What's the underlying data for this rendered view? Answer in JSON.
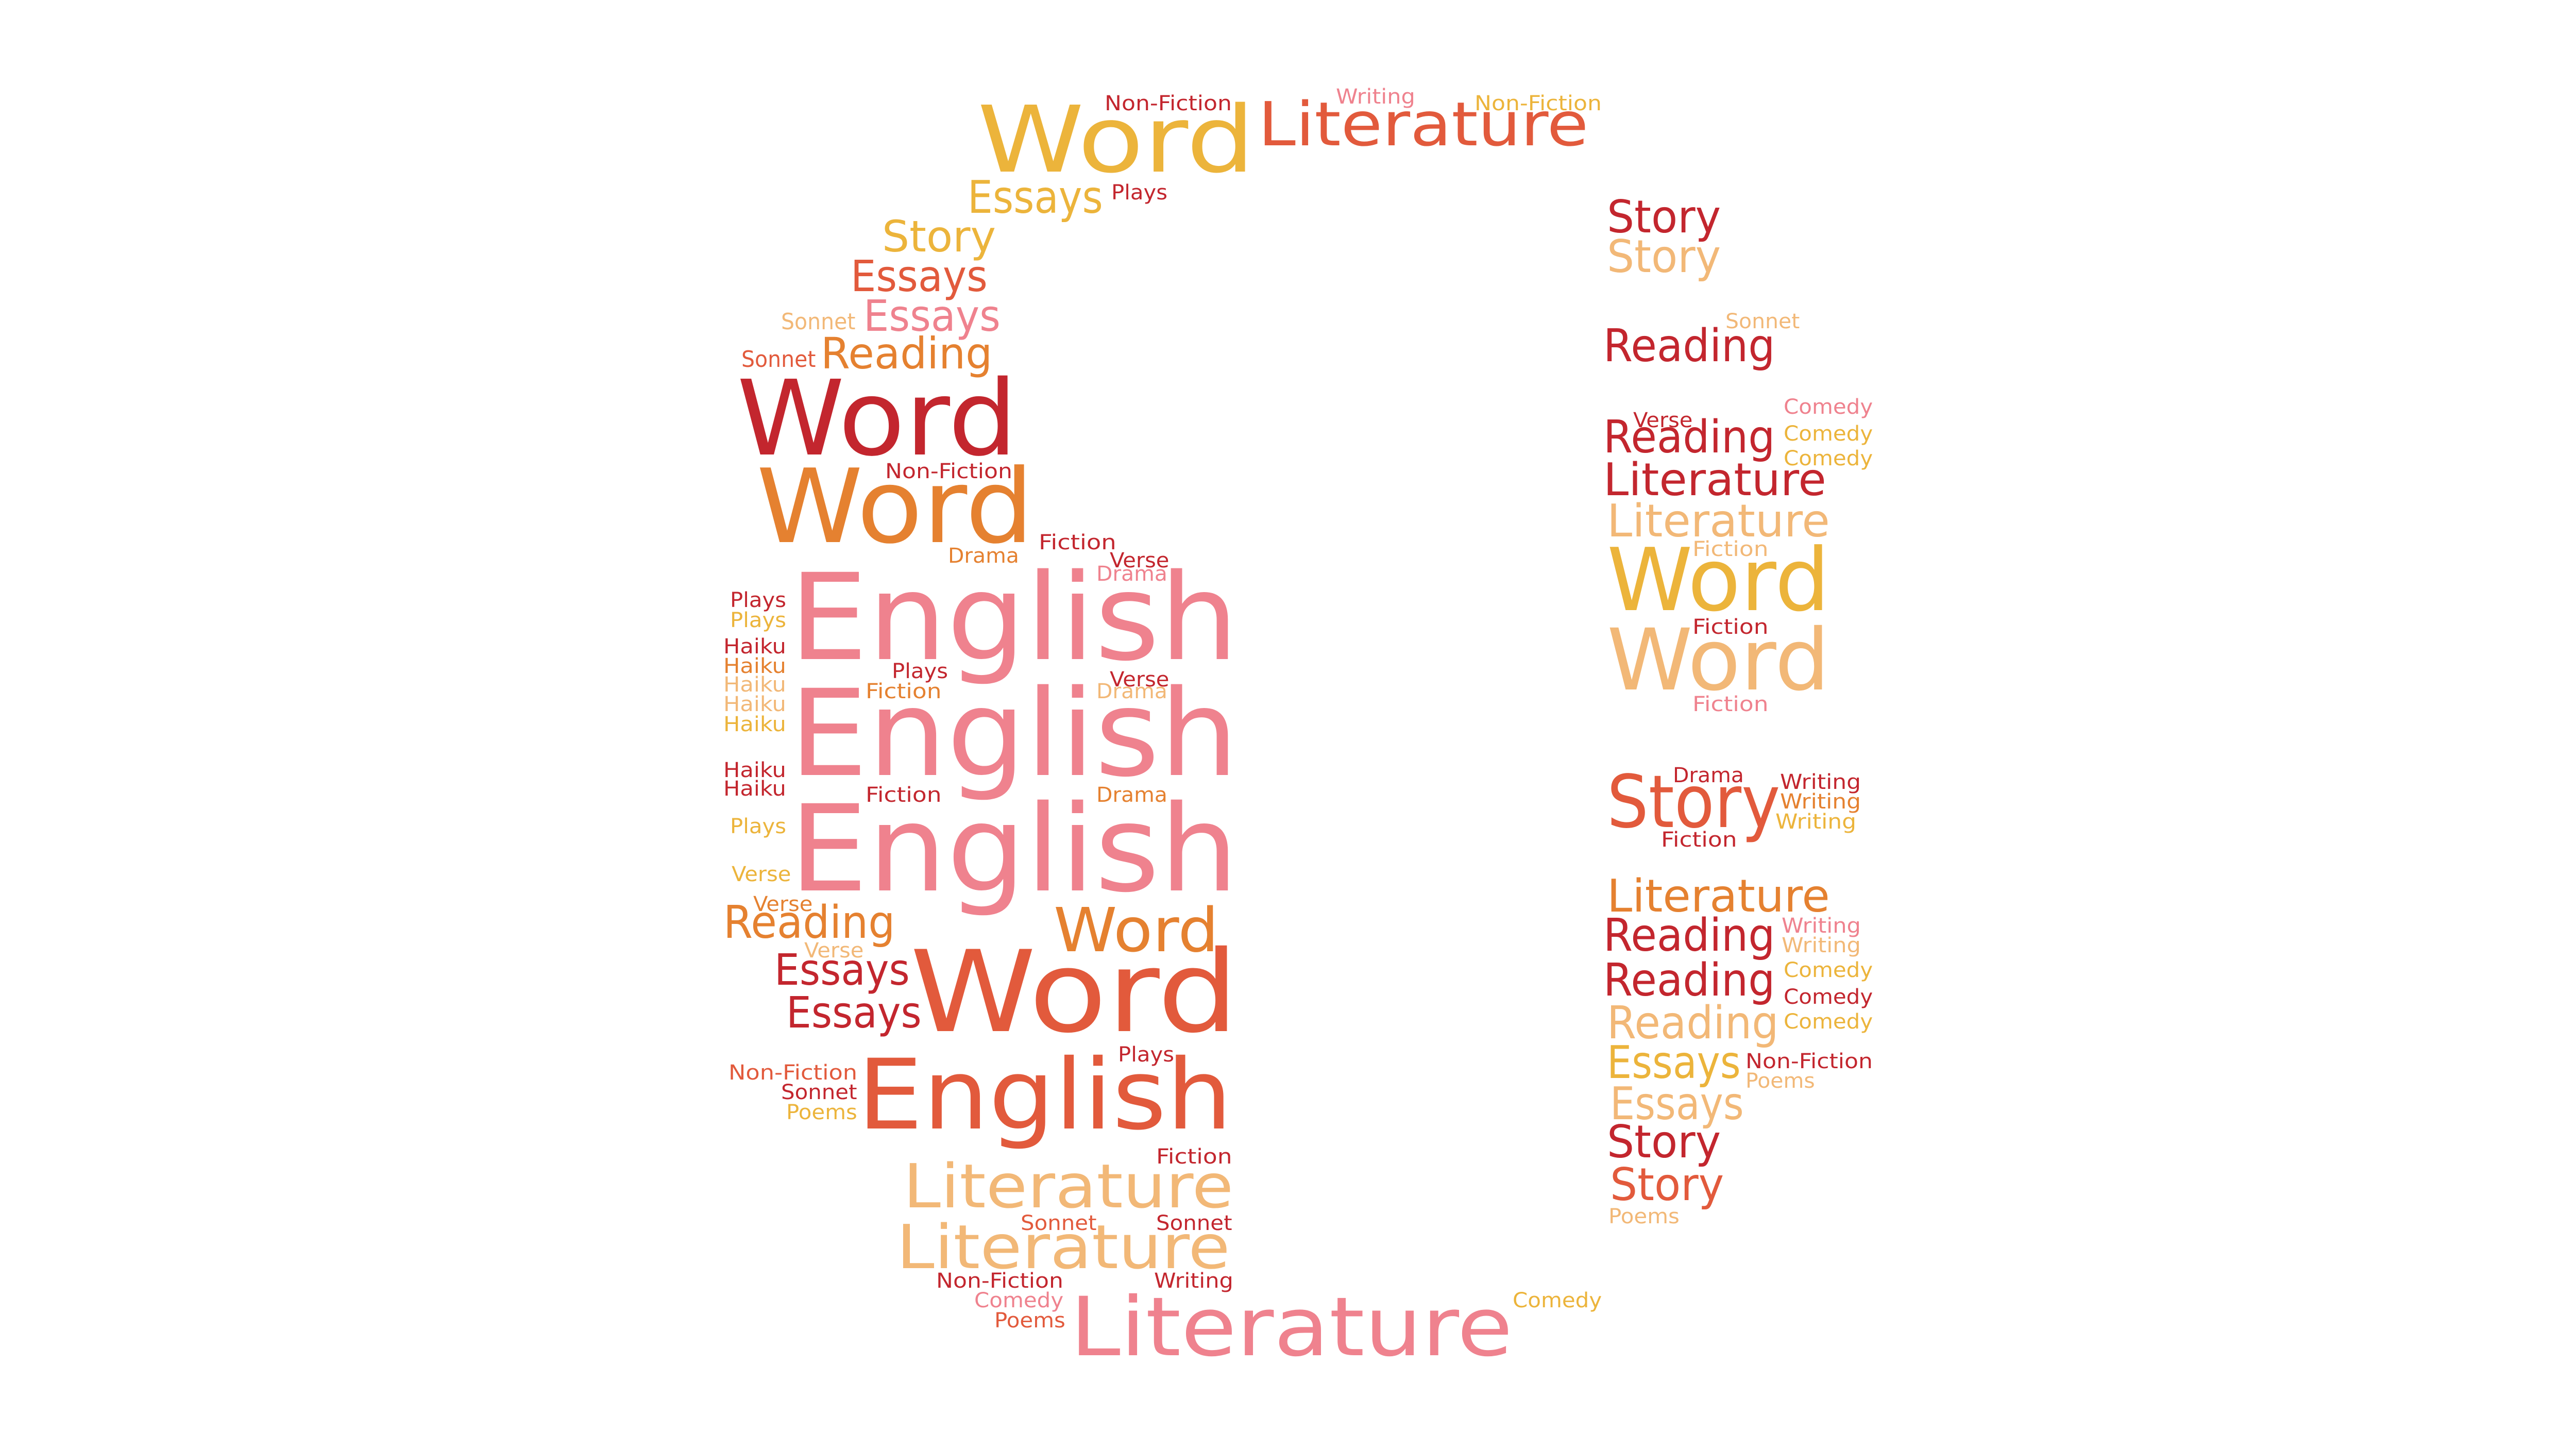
{
  "palette": {
    "crimson": "#c3262e",
    "coral": "#e25a3c",
    "orange": "#e58130",
    "gold": "#ecb43b",
    "peach": "#f2b877",
    "pink": "#ef828e"
  },
  "words": [
    {
      "text": "Word",
      "color": "gold"
    },
    {
      "text": "Literature",
      "color": "coral"
    },
    {
      "text": "Non-Fiction",
      "color": "crimson"
    },
    {
      "text": "Writing",
      "color": "pink"
    },
    {
      "text": "Non-Fiction",
      "color": "gold"
    },
    {
      "text": "Essays",
      "color": "gold"
    },
    {
      "text": "Plays",
      "color": "crimson"
    },
    {
      "text": "Story",
      "color": "gold"
    },
    {
      "text": "Essays",
      "color": "coral"
    },
    {
      "text": "Essays",
      "color": "pink"
    },
    {
      "text": "Sonnet",
      "color": "peach"
    },
    {
      "text": "Sonnet",
      "color": "coral"
    },
    {
      "text": "Reading",
      "color": "orange"
    },
    {
      "text": "Word",
      "color": "crimson"
    },
    {
      "text": "Non-Fiction",
      "color": "crimson"
    },
    {
      "text": "Word",
      "color": "orange"
    },
    {
      "text": "Fiction",
      "color": "crimson"
    },
    {
      "text": "Drama",
      "color": "orange"
    },
    {
      "text": "Verse",
      "color": "crimson"
    },
    {
      "text": "Drama",
      "color": "pink"
    },
    {
      "text": "English",
      "color": "pink"
    },
    {
      "text": "Plays",
      "color": "crimson"
    },
    {
      "text": "Plays",
      "color": "gold"
    },
    {
      "text": "Haiku",
      "color": "crimson"
    },
    {
      "text": "Haiku",
      "color": "orange"
    },
    {
      "text": "Haiku",
      "color": "peach"
    },
    {
      "text": "Haiku",
      "color": "peach"
    },
    {
      "text": "Haiku",
      "color": "gold"
    },
    {
      "text": "Plays",
      "color": "crimson"
    },
    {
      "text": "Fiction",
      "color": "orange"
    },
    {
      "text": "Verse",
      "color": "crimson"
    },
    {
      "text": "Drama",
      "color": "peach"
    },
    {
      "text": "English",
      "color": "pink"
    },
    {
      "text": "Haiku",
      "color": "crimson"
    },
    {
      "text": "Haiku",
      "color": "crimson"
    },
    {
      "text": "Fiction",
      "color": "crimson"
    },
    {
      "text": "Drama",
      "color": "orange"
    },
    {
      "text": "Plays",
      "color": "gold"
    },
    {
      "text": "English",
      "color": "pink"
    },
    {
      "text": "Verse",
      "color": "gold"
    },
    {
      "text": "Verse",
      "color": "orange"
    },
    {
      "text": "Reading",
      "color": "orange"
    },
    {
      "text": "Word",
      "color": "orange"
    },
    {
      "text": "Verse",
      "color": "peach"
    },
    {
      "text": "Essays",
      "color": "crimson"
    },
    {
      "text": "Word",
      "color": "coral"
    },
    {
      "text": "Essays",
      "color": "crimson"
    },
    {
      "text": "Plays",
      "color": "crimson"
    },
    {
      "text": "Non-Fiction",
      "color": "coral"
    },
    {
      "text": "Sonnet",
      "color": "crimson"
    },
    {
      "text": "Poems",
      "color": "gold"
    },
    {
      "text": "English",
      "color": "coral"
    },
    {
      "text": "Fiction",
      "color": "crimson"
    },
    {
      "text": "Literature",
      "color": "peach"
    },
    {
      "text": "Sonnet",
      "color": "coral"
    },
    {
      "text": "Sonnet",
      "color": "crimson"
    },
    {
      "text": "Literature",
      "color": "peach"
    },
    {
      "text": "Non-Fiction",
      "color": "crimson"
    },
    {
      "text": "Writing",
      "color": "crimson"
    },
    {
      "text": "Comedy",
      "color": "pink"
    },
    {
      "text": "Poems",
      "color": "coral"
    },
    {
      "text": "Literature",
      "color": "pink"
    },
    {
      "text": "Comedy",
      "color": "gold"
    },
    {
      "text": "Story",
      "color": "crimson"
    },
    {
      "text": "Story",
      "color": "peach"
    },
    {
      "text": "Sonnet",
      "color": "peach"
    },
    {
      "text": "Reading",
      "color": "crimson"
    },
    {
      "text": "Comedy",
      "color": "pink"
    },
    {
      "text": "Verse",
      "color": "crimson"
    },
    {
      "text": "Reading",
      "color": "crimson"
    },
    {
      "text": "Comedy",
      "color": "gold"
    },
    {
      "text": "Comedy",
      "color": "gold"
    },
    {
      "text": "Literature",
      "color": "crimson"
    },
    {
      "text": "Literature",
      "color": "peach"
    },
    {
      "text": "Fiction",
      "color": "peach"
    },
    {
      "text": "Word",
      "color": "gold"
    },
    {
      "text": "Fiction",
      "color": "crimson"
    },
    {
      "text": "Word",
      "color": "peach"
    },
    {
      "text": "Fiction",
      "color": "pink"
    },
    {
      "text": "Drama",
      "color": "crimson"
    },
    {
      "text": "Story",
      "color": "coral"
    },
    {
      "text": "Writing",
      "color": "crimson"
    },
    {
      "text": "Writing",
      "color": "orange"
    },
    {
      "text": "Writing",
      "color": "gold"
    },
    {
      "text": "Fiction",
      "color": "crimson"
    },
    {
      "text": "Literature",
      "color": "orange"
    },
    {
      "text": "Reading",
      "color": "crimson"
    },
    {
      "text": "Writing",
      "color": "pink"
    },
    {
      "text": "Writing",
      "color": "peach"
    },
    {
      "text": "Reading",
      "color": "crimson"
    },
    {
      "text": "Comedy",
      "color": "gold"
    },
    {
      "text": "Comedy",
      "color": "crimson"
    },
    {
      "text": "Reading",
      "color": "peach"
    },
    {
      "text": "Comedy",
      "color": "gold"
    },
    {
      "text": "Essays",
      "color": "gold"
    },
    {
      "text": "Non-Fiction",
      "color": "crimson"
    },
    {
      "text": "Poems",
      "color": "peach"
    },
    {
      "text": "Essays",
      "color": "peach"
    },
    {
      "text": "Story",
      "color": "crimson"
    },
    {
      "text": "Story",
      "color": "coral"
    },
    {
      "text": "Poems",
      "color": "peach"
    }
  ]
}
